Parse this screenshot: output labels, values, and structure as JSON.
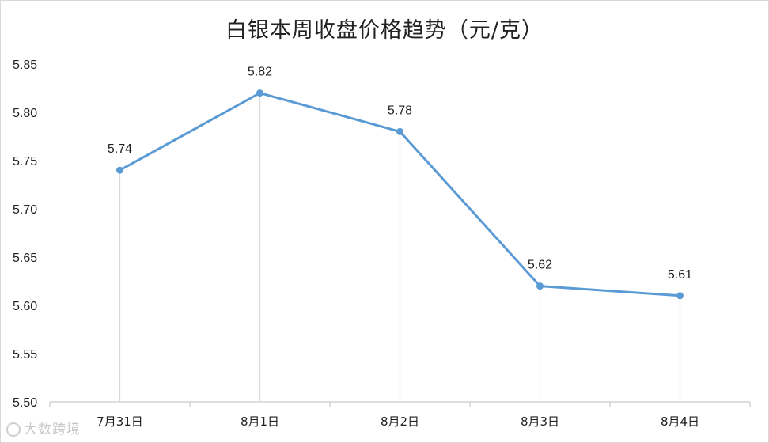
{
  "chart_data": {
    "type": "line",
    "title": "白银本周收盘价格趋势（元/克）",
    "categories": [
      "7月31日",
      "8月1日",
      "8月2日",
      "8月3日",
      "8月4日"
    ],
    "series": [
      {
        "values": [
          5.74,
          5.82,
          5.78,
          5.62,
          5.61
        ]
      }
    ],
    "data_labels": [
      "5.74",
      "5.82",
      "5.78",
      "5.62",
      "5.61"
    ],
    "y_ticks": [
      "5.50",
      "5.55",
      "5.60",
      "5.65",
      "5.70",
      "5.75",
      "5.80",
      "5.85"
    ],
    "ylim": [
      5.5,
      5.85
    ],
    "xlabel": "",
    "ylabel": "",
    "grid": false,
    "drop_lines": true,
    "legend": "none",
    "colors": {
      "line": "#5b9bd5",
      "drop_line": "#d9d9d9",
      "axis": "#bfbfbf"
    }
  },
  "watermark": {
    "text": "大数跨境",
    "icon": "logo-icon"
  }
}
